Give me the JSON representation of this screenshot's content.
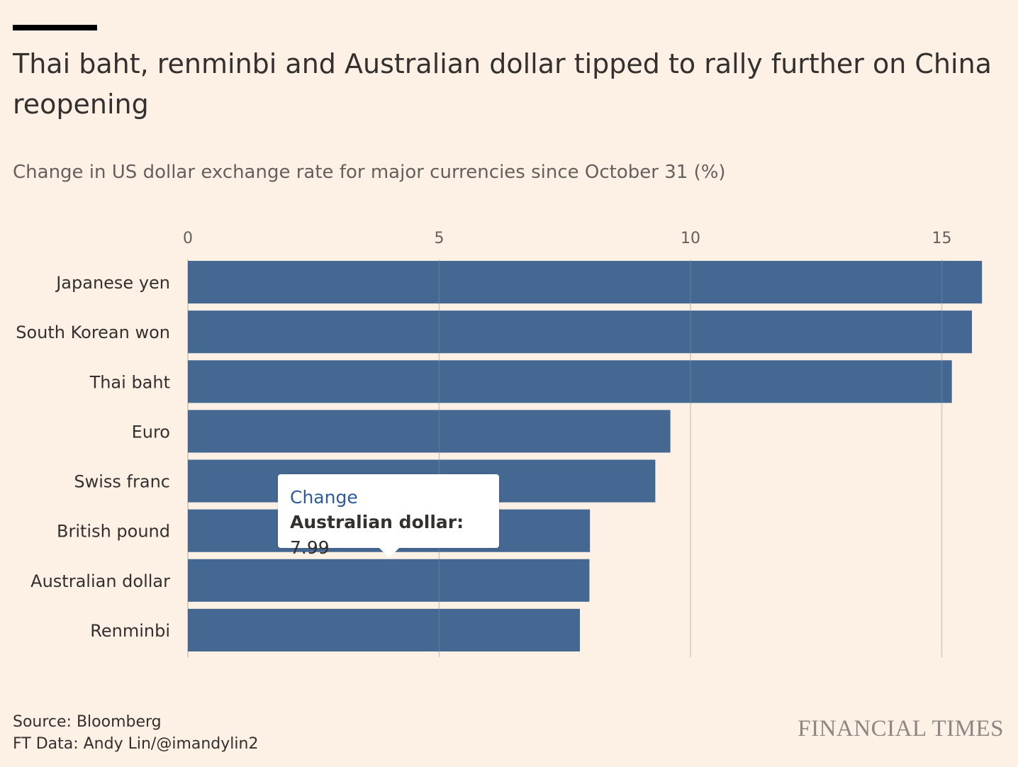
{
  "header": {
    "title": "Thai baht, renminbi and Australian dollar tipped to rally further on China reopening",
    "subtitle": "Change in US dollar exchange rate for major currencies since October 31 (%)"
  },
  "chart_data": {
    "type": "bar",
    "orientation": "horizontal",
    "title": "Thai baht, renminbi and Australian dollar tipped to rally further on China reopening",
    "subtitle": "Change in US dollar exchange rate for major currencies since October 31 (%)",
    "categories": [
      "Japanese yen",
      "South Korean won",
      "Thai baht",
      "Euro",
      "Swiss franc",
      "British pound",
      "Australian dollar",
      "Renminbi"
    ],
    "series": [
      {
        "name": "Change",
        "values": [
          15.8,
          15.6,
          15.2,
          9.6,
          9.3,
          8.0,
          7.99,
          7.8
        ]
      }
    ],
    "xlim": [
      0,
      16
    ],
    "xticks": [
      0,
      5,
      10,
      15
    ],
    "xtick_labels": [
      "0",
      "5",
      "10",
      "15"
    ],
    "axis_position": "top",
    "grid": true,
    "bar_color": "#416590",
    "grid_color": "#ccc1b7"
  },
  "tooltip": {
    "title": "Change",
    "key": "Australian dollar:",
    "value": "7.99"
  },
  "footer": {
    "source": "Source: Bloomberg",
    "credit": "FT Data: Andy Lin/@imandylin2",
    "brand": "FINANCIAL TIMES"
  }
}
